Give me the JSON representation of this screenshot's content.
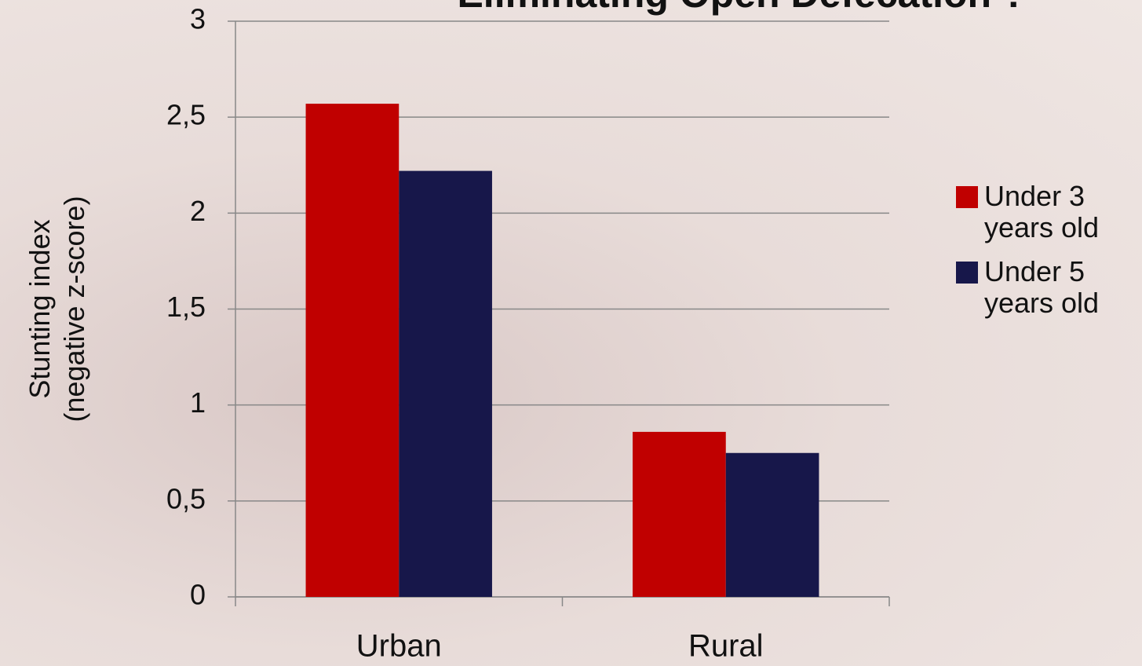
{
  "chart_data": {
    "type": "bar",
    "title": "Eliminating Open Defecation ?",
    "ylabel": [
      "Stunting index",
      "(negative z-score)"
    ],
    "categories": [
      "Urban",
      "Rural"
    ],
    "series": [
      {
        "name": "Under 3 years old",
        "color": "#c00000",
        "values": [
          2.57,
          0.86
        ]
      },
      {
        "name": "Under 5 years old",
        "color": "#17174a",
        "values": [
          2.22,
          0.75
        ]
      }
    ],
    "ylim": [
      0,
      3
    ],
    "yticks": [
      0,
      {
        "value": 0.5,
        "label": "0,5"
      },
      1,
      {
        "value": 1.5,
        "label": "1,5"
      },
      2,
      {
        "value": 2.5,
        "label": "2,5"
      },
      3
    ],
    "grid": true,
    "legend": "right"
  }
}
